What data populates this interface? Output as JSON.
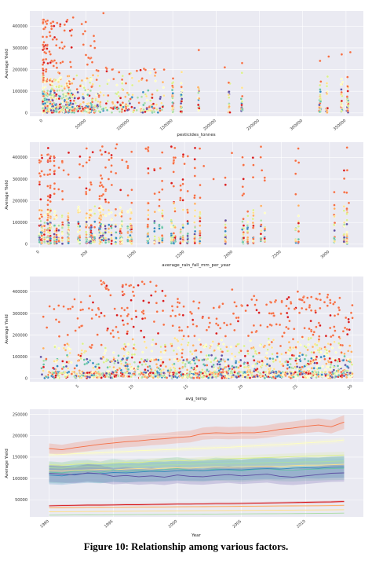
{
  "caption": "Figure 10: Relationship among various factors.",
  "colors": {
    "plot_bg": "#eaeaf2",
    "grid": "#ffffff",
    "palette": [
      "#d7191c",
      "#f46d43",
      "#fdae61",
      "#fee08b",
      "#ffffbf",
      "#d9ef8b",
      "#abdda4",
      "#66c2a5",
      "#3288bd",
      "#5e4fa2"
    ]
  },
  "chart_data": [
    {
      "type": "scatter",
      "xlabel": "pesticides_tonnes",
      "ylabel": "Average Yield",
      "xlim": [
        -15000,
        370000
      ],
      "ylim": [
        -15000,
        470000
      ],
      "xticks": [
        0,
        50000,
        100000,
        150000,
        200000,
        250000,
        300000,
        350000
      ],
      "xtick_labels": [
        "0",
        "50000",
        "100000",
        "150000",
        "200000",
        "250000",
        "300000",
        "350000"
      ],
      "yticks": [
        0,
        100000,
        200000,
        300000,
        400000
      ],
      "ytick_labels": [
        "0",
        "100000",
        "200000",
        "300000",
        "400000"
      ],
      "grid": true,
      "samples": [
        [
          1000,
          430000
        ],
        [
          2000,
          280000
        ],
        [
          5000,
          310000
        ],
        [
          8000,
          150000
        ],
        [
          12000,
          420000
        ],
        [
          20000,
          400000
        ],
        [
          25000,
          380000
        ],
        [
          35000,
          440000
        ],
        [
          45000,
          410000
        ],
        [
          60000,
          300000
        ],
        [
          70000,
          460000
        ],
        [
          80000,
          200000
        ],
        [
          100000,
          180000
        ],
        [
          120000,
          150000
        ],
        [
          140000,
          200000
        ],
        [
          160000,
          120000
        ],
        [
          180000,
          290000
        ],
        [
          210000,
          210000
        ],
        [
          230000,
          230000
        ],
        [
          320000,
          240000
        ],
        [
          330000,
          260000
        ],
        [
          345000,
          270000
        ],
        [
          355000,
          280000
        ]
      ]
    },
    {
      "type": "scatter",
      "xlabel": "average_rain_fall_mm_per_year",
      "ylabel": "Average Yield",
      "xlim": [
        -100,
        3350
      ],
      "ylim": [
        -15000,
        470000
      ],
      "xticks": [
        0,
        500,
        1000,
        1500,
        2000,
        2500,
        3000
      ],
      "xtick_labels": [
        "0",
        "500",
        "1000",
        "1500",
        "2000",
        "2500",
        "3000"
      ],
      "yticks": [
        0,
        100000,
        200000,
        300000,
        400000
      ],
      "ytick_labels": [
        "0",
        "100000",
        "200000",
        "300000",
        "400000"
      ],
      "grid": true,
      "samples": [
        [
          50,
          320000
        ],
        [
          250,
          340000
        ],
        [
          450,
          360000
        ],
        [
          520,
          400000
        ],
        [
          650,
          450000
        ],
        [
          800,
          460000
        ],
        [
          900,
          380000
        ],
        [
          1100,
          440000
        ],
        [
          1250,
          350000
        ],
        [
          1500,
          370000
        ],
        [
          1700,
          360000
        ],
        [
          1800,
          300000
        ],
        [
          1990,
          420000
        ],
        [
          2300,
          340000
        ],
        [
          2650,
          230000
        ],
        [
          3050,
          180000
        ],
        [
          3200,
          190000
        ]
      ]
    },
    {
      "type": "scatter",
      "xlabel": "avg_temp",
      "ylabel": "Average Yield",
      "xlim": [
        0.5,
        31
      ],
      "ylim": [
        -15000,
        470000
      ],
      "xticks": [
        5,
        10,
        15,
        20,
        25,
        30
      ],
      "xtick_labels": [
        "5",
        "10",
        "15",
        "20",
        "25",
        "30"
      ],
      "yticks": [
        0,
        100000,
        200000,
        300000,
        400000
      ],
      "ytick_labels": [
        "0",
        "100000",
        "200000",
        "300000",
        "400000"
      ],
      "grid": true,
      "samples": [
        [
          2,
          90000
        ],
        [
          4,
          320000
        ],
        [
          6,
          380000
        ],
        [
          7,
          450000
        ],
        [
          9,
          430000
        ],
        [
          10,
          420000
        ],
        [
          12,
          400000
        ],
        [
          14,
          330000
        ],
        [
          16,
          350000
        ],
        [
          19,
          410000
        ],
        [
          21,
          380000
        ],
        [
          23,
          360000
        ],
        [
          25,
          400000
        ],
        [
          27,
          390000
        ],
        [
          29,
          120000
        ]
      ]
    },
    {
      "type": "line",
      "xlabel": "Year",
      "ylabel": "Average Yield",
      "xlim": [
        1988.5,
        2014.5
      ],
      "ylim": [
        10000,
        262000
      ],
      "xticks": [
        1990,
        1995,
        2000,
        2005,
        2010
      ],
      "xtick_labels": [
        "1990",
        "1995",
        "2000",
        "2005",
        "2010"
      ],
      "yticks": [
        50000,
        100000,
        150000,
        200000,
        250000
      ],
      "ytick_labels": [
        "50000",
        "100000",
        "150000",
        "200000",
        "250000"
      ],
      "grid": true,
      "x": [
        1990,
        1991,
        1992,
        1993,
        1994,
        1995,
        1996,
        1997,
        1998,
        1999,
        2000,
        2001,
        2002,
        2003,
        2004,
        2005,
        2006,
        2007,
        2008,
        2009,
        2010,
        2011,
        2012,
        2013
      ],
      "series": [
        {
          "values": [
            170000,
            167000,
            172000,
            176000,
            180000,
            183000,
            186000,
            188000,
            191000,
            193000,
            196000,
            198000,
            205000,
            207000,
            206000,
            207000,
            207000,
            210000,
            215000,
            218000,
            222000,
            225000,
            221000,
            232000
          ]
        },
        {
          "values": [
            155000,
            156000,
            158000,
            159000,
            160000,
            162000,
            163000,
            165000,
            166000,
            167000,
            168000,
            170000,
            171000,
            172000,
            173000,
            175000,
            176000,
            178000,
            179000,
            181000,
            183000,
            185000,
            187000,
            190000
          ]
        },
        {
          "values": [
            132000,
            131000,
            133000,
            135000,
            134000,
            136000,
            138000,
            137000,
            140000,
            141000,
            142000,
            141000,
            143000,
            145000,
            146000,
            147000,
            148000,
            149000,
            150000,
            151000,
            152000,
            153000,
            154000,
            155000
          ]
        },
        {
          "values": [
            125000,
            124000,
            126000,
            128000,
            127000,
            129000,
            130000,
            129000,
            131000,
            132000,
            132000,
            133000,
            134000,
            134000,
            135000,
            136000,
            136000,
            137000,
            138000,
            138000,
            139000,
            139000,
            140000,
            141000
          ]
        },
        {
          "values": [
            118000,
            117000,
            119000,
            120000,
            121000,
            120000,
            122000,
            123000,
            122000,
            124000,
            125000,
            124000,
            126000,
            127000,
            126000,
            127000,
            128000,
            129000,
            128000,
            130000,
            131000,
            131000,
            132000,
            133000
          ]
        },
        {
          "values": [
            115000,
            113000,
            117000,
            118000,
            114000,
            120000,
            116000,
            119000,
            117000,
            121000,
            123000,
            119000,
            118000,
            122000,
            120000,
            118000,
            121000,
            123000,
            120000,
            119000,
            121000,
            122000,
            123000,
            124000
          ]
        },
        {
          "values": [
            108000,
            106000,
            110000,
            112000,
            111000,
            114000,
            113000,
            115000,
            117000,
            116000,
            118000,
            119000,
            118000,
            120000,
            121000,
            120000,
            122000,
            123000,
            122000,
            124000,
            125000,
            124000,
            126000,
            127000
          ]
        },
        {
          "values": [
            112000,
            110000,
            108000,
            113000,
            111000,
            105000,
            107000,
            104000,
            106000,
            103000,
            108000,
            105000,
            104000,
            107000,
            109000,
            106000,
            108000,
            110000,
            105000,
            103000,
            106000,
            109000,
            112000,
            113000
          ]
        },
        {
          "values": [
            36000,
            36500,
            37000,
            37500,
            37500,
            38000,
            38500,
            38500,
            39000,
            39500,
            40000,
            40000,
            40500,
            41000,
            41000,
            41500,
            42000,
            42500,
            43000,
            43500,
            44000,
            44500,
            45000,
            46000
          ]
        },
        {
          "values": [
            31000,
            31200,
            31500,
            31800,
            32000,
            32200,
            32500,
            32800,
            33000,
            33200,
            33500,
            33800,
            34000,
            34200,
            34500,
            34800,
            35000,
            35200,
            35500,
            35800,
            36000,
            36200,
            36500,
            37000
          ]
        },
        {
          "values": [
            22000,
            22200,
            22400,
            22600,
            22800,
            23000,
            23200,
            23400,
            23600,
            23800,
            24000,
            24200,
            24400,
            24600,
            24800,
            25000,
            25200,
            25400,
            25600,
            25800,
            26000,
            26200,
            26400,
            26800
          ]
        },
        {
          "values": [
            14000,
            14200,
            14400,
            14600,
            14800,
            15000,
            15200,
            15400,
            15600,
            15800,
            16000,
            16200,
            16400,
            16600,
            16800,
            17000,
            17200,
            17400,
            17600,
            17800,
            18000,
            18200,
            18400,
            18800
          ]
        }
      ]
    }
  ]
}
